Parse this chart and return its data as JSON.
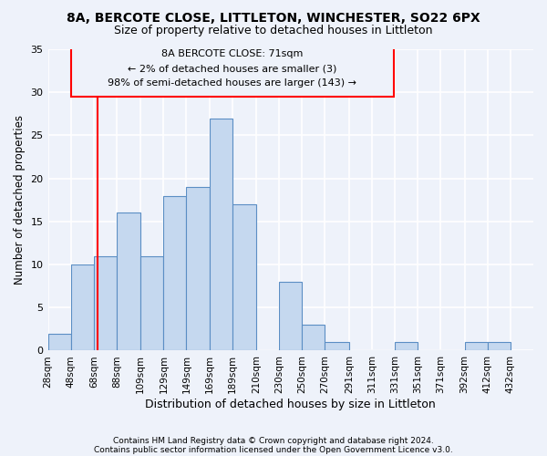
{
  "title_line1": "8A, BERCOTE CLOSE, LITTLETON, WINCHESTER, SO22 6PX",
  "title_line2": "Size of property relative to detached houses in Littleton",
  "xlabel": "Distribution of detached houses by size in Littleton",
  "ylabel": "Number of detached properties",
  "footnote1": "Contains HM Land Registry data © Crown copyright and database right 2024.",
  "footnote2": "Contains public sector information licensed under the Open Government Licence v3.0.",
  "annotation_line1": "8A BERCOTE CLOSE: 71sqm",
  "annotation_line2": "← 2% of detached houses are smaller (3)",
  "annotation_line3": "98% of semi-detached houses are larger (143) →",
  "bar_color": "#c5d8ef",
  "bar_edge_color": "#5b8ec4",
  "bar_left_edges": [
    28,
    48,
    68,
    88,
    109,
    129,
    149,
    169,
    189,
    210,
    230,
    250,
    270,
    291,
    311,
    331,
    351,
    371,
    392,
    412
  ],
  "bar_widths": [
    20,
    20,
    20,
    21,
    20,
    20,
    20,
    20,
    21,
    20,
    20,
    20,
    21,
    20,
    20,
    20,
    20,
    21,
    20,
    20
  ],
  "bar_heights": [
    2,
    10,
    11,
    16,
    11,
    18,
    19,
    27,
    17,
    0,
    8,
    3,
    1,
    0,
    0,
    1,
    0,
    0,
    1,
    1
  ],
  "tick_labels": [
    "28sqm",
    "48sqm",
    "68sqm",
    "88sqm",
    "109sqm",
    "129sqm",
    "149sqm",
    "169sqm",
    "189sqm",
    "210sqm",
    "230sqm",
    "250sqm",
    "270sqm",
    "291sqm",
    "311sqm",
    "331sqm",
    "351sqm",
    "371sqm",
    "392sqm",
    "412sqm",
    "432sqm"
  ],
  "tick_positions": [
    28,
    48,
    68,
    88,
    109,
    129,
    149,
    169,
    189,
    210,
    230,
    250,
    270,
    291,
    311,
    331,
    351,
    371,
    392,
    412,
    432
  ],
  "xlim": [
    28,
    452
  ],
  "ylim": [
    0,
    35
  ],
  "yticks": [
    0,
    5,
    10,
    15,
    20,
    25,
    30,
    35
  ],
  "red_line_x": 71,
  "background_color": "#eef2fa",
  "grid_color": "#ffffff",
  "ann_x1": 48,
  "ann_x2": 330,
  "ann_y1": 29.5,
  "ann_y2": 35.5
}
